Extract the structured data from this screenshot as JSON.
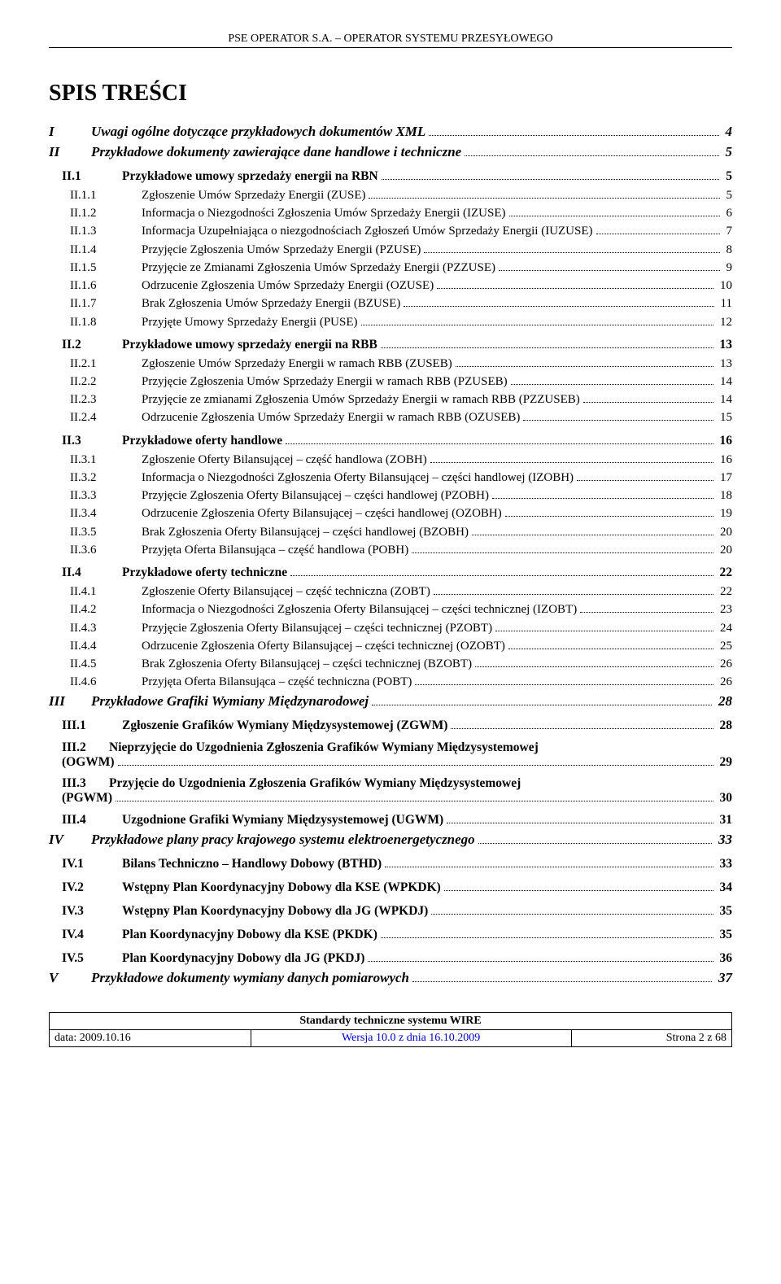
{
  "header": "PSE OPERATOR S.A. – OPERATOR SYSTEMU PRZESYŁOWEGO",
  "toc_title": "SPIS TREŚCI",
  "entries": [
    {
      "level": 1,
      "label": "I",
      "text": "Uwagi ogólne dotyczące przykładowych dokumentów XML",
      "page": "4"
    },
    {
      "level": 1,
      "label": "II",
      "text": "Przykładowe dokumenty zawierające dane handlowe i techniczne",
      "page": "5"
    },
    {
      "level": 2,
      "label": "II.1",
      "text": "Przykładowe umowy sprzedaży energii na RBN",
      "page": "5"
    },
    {
      "level": 3,
      "label": "II.1.1",
      "text": "Zgłoszenie Umów Sprzedaży Energii (ZUSE)",
      "page": "5"
    },
    {
      "level": 3,
      "label": "II.1.2",
      "text": "Informacja o Niezgodności Zgłoszenia Umów Sprzedaży Energii (IZUSE)",
      "page": "6"
    },
    {
      "level": 3,
      "label": "II.1.3",
      "text": "Informacja Uzupełniająca o niezgodnościach Zgłoszeń Umów Sprzedaży Energii (IUZUSE)",
      "page": "7"
    },
    {
      "level": 3,
      "label": "II.1.4",
      "text": "Przyjęcie Zgłoszenia Umów Sprzedaży Energii (PZUSE)",
      "page": "8"
    },
    {
      "level": 3,
      "label": "II.1.5",
      "text": "Przyjęcie ze Zmianami Zgłoszenia Umów Sprzedaży Energii (PZZUSE)",
      "page": "9"
    },
    {
      "level": 3,
      "label": "II.1.6",
      "text": "Odrzucenie Zgłoszenia Umów Sprzedaży Energii (OZUSE)",
      "page": "10"
    },
    {
      "level": 3,
      "label": "II.1.7",
      "text": "Brak Zgłoszenia Umów Sprzedaży Energii (BZUSE)",
      "page": "11"
    },
    {
      "level": 3,
      "label": "II.1.8",
      "text": "Przyjęte Umowy Sprzedaży Energii (PUSE)",
      "page": "12"
    },
    {
      "level": 2,
      "label": "II.2",
      "text": "Przykładowe umowy sprzedaży energii na RBB",
      "page": "13"
    },
    {
      "level": 3,
      "label": "II.2.1",
      "text": "Zgłoszenie Umów Sprzedaży Energii w ramach RBB (ZUSEB)",
      "page": "13"
    },
    {
      "level": 3,
      "label": "II.2.2",
      "text": "Przyjęcie Zgłoszenia Umów Sprzedaży Energii w ramach RBB (PZUSEB)",
      "page": "14"
    },
    {
      "level": 3,
      "label": "II.2.3",
      "text": "Przyjęcie ze zmianami Zgłoszenia Umów Sprzedaży Energii w ramach RBB (PZZUSEB)",
      "page": "14"
    },
    {
      "level": 3,
      "label": "II.2.4",
      "text": "Odrzucenie Zgłoszenia Umów Sprzedaży Energii w ramach RBB (OZUSEB)",
      "page": "15"
    },
    {
      "level": 2,
      "label": "II.3",
      "text": "Przykładowe oferty handlowe",
      "page": "16"
    },
    {
      "level": 3,
      "label": "II.3.1",
      "text": "Zgłoszenie Oferty Bilansującej – część handlowa (ZOBH)",
      "page": "16"
    },
    {
      "level": 3,
      "label": "II.3.2",
      "text": "Informacja o Niezgodności Zgłoszenia Oferty Bilansującej – części handlowej (IZOBH)",
      "page": "17"
    },
    {
      "level": 3,
      "label": "II.3.3",
      "text": "Przyjęcie Zgłoszenia Oferty Bilansującej – części handlowej (PZOBH)",
      "page": "18"
    },
    {
      "level": 3,
      "label": "II.3.4",
      "text": "Odrzucenie Zgłoszenia Oferty Bilansującej – części handlowej (OZOBH)",
      "page": "19"
    },
    {
      "level": 3,
      "label": "II.3.5",
      "text": "Brak Zgłoszenia Oferty Bilansującej – części handlowej (BZOBH)",
      "page": "20"
    },
    {
      "level": 3,
      "label": "II.3.6",
      "text": "Przyjęta Oferta Bilansująca – część handlowa (POBH)",
      "page": "20"
    },
    {
      "level": 2,
      "label": "II.4",
      "text": "Przykładowe oferty techniczne",
      "page": "22"
    },
    {
      "level": 3,
      "label": "II.4.1",
      "text": "Zgłoszenie Oferty Bilansującej – część techniczna (ZOBT)",
      "page": "22"
    },
    {
      "level": 3,
      "label": "II.4.2",
      "text": "Informacja o Niezgodności Zgłoszenia Oferty Bilansującej – części technicznej (IZOBT)",
      "page": "23"
    },
    {
      "level": 3,
      "label": "II.4.3",
      "text": "Przyjęcie Zgłoszenia Oferty Bilansującej – części technicznej (PZOBT)",
      "page": "24"
    },
    {
      "level": 3,
      "label": "II.4.4",
      "text": "Odrzucenie Zgłoszenia Oferty Bilansującej – części technicznej (OZOBT)",
      "page": "25"
    },
    {
      "level": 3,
      "label": "II.4.5",
      "text": "Brak Zgłoszenia Oferty Bilansującej – części technicznej (BZOBT)",
      "page": "26"
    },
    {
      "level": 3,
      "label": "II.4.6",
      "text": "Przyjęta Oferta Bilansująca – część techniczna (POBT)",
      "page": "26"
    },
    {
      "level": 1,
      "label": "III",
      "text": "Przykładowe Grafiki Wymiany Międzynarodowej",
      "page": "28"
    },
    {
      "level": 2,
      "label": "III.1",
      "text": "Zgłoszenie Grafików Wymiany Międzysystemowej (ZGWM)",
      "page": "28"
    },
    {
      "level": "2m",
      "label": "III.2",
      "text1": "Nieprzyjęcie do Uzgodnienia Zgłoszenia Grafików Wymiany Międzysystemowej",
      "text2": "(OGWM)",
      "page": "29"
    },
    {
      "level": "2m",
      "label": "III.3",
      "text1": "Przyjęcie do Uzgodnienia Zgłoszenia Grafików Wymiany Międzysystemowej",
      "text2": "(PGWM)",
      "page": "30"
    },
    {
      "level": 2,
      "label": "III.4",
      "text": "Uzgodnione Grafiki Wymiany Międzysystemowej (UGWM)",
      "page": "31"
    },
    {
      "level": 1,
      "label": "IV",
      "text": "Przykładowe plany pracy krajowego systemu elektroenergetycznego",
      "page": "33"
    },
    {
      "level": 2,
      "label": "IV.1",
      "text": "Bilans Techniczno – Handlowy Dobowy (BTHD)",
      "page": "33"
    },
    {
      "level": 2,
      "label": "IV.2",
      "text": "Wstępny Plan Koordynacyjny Dobowy dla KSE (WPKDK)",
      "page": "34"
    },
    {
      "level": 2,
      "label": "IV.3",
      "text": "Wstępny Plan Koordynacyjny Dobowy dla JG (WPKDJ)",
      "page": "35"
    },
    {
      "level": 2,
      "label": "IV.4",
      "text": "Plan Koordynacyjny Dobowy dla KSE (PKDK)",
      "page": "35"
    },
    {
      "level": 2,
      "label": "IV.5",
      "text": "Plan Koordynacyjny Dobowy dla JG (PKDJ)",
      "page": "36"
    },
    {
      "level": 1,
      "label": "V",
      "text": "Przykładowe dokumenty wymiany danych pomiarowych",
      "page": "37"
    }
  ],
  "footer": {
    "title": "Standardy techniczne systemu WIRE",
    "date_label": "data: 2009.10.16",
    "version": "Wersja 10.0 z dnia 16.10.2009",
    "page": "Strona 2 z 68"
  }
}
